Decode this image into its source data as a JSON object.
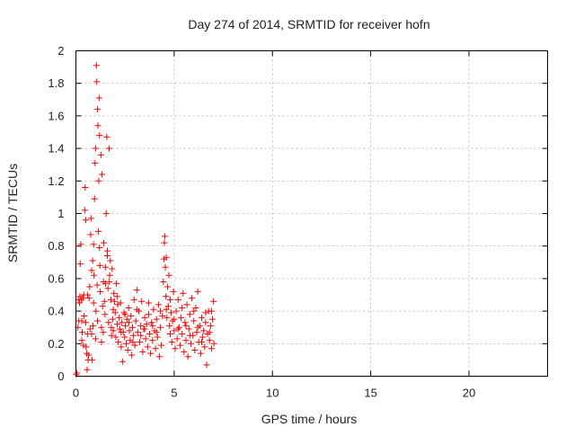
{
  "chart_data": {
    "type": "scatter",
    "title": "Day 274 of 2014, SRMTID for receiver hofn",
    "xlabel": "GPS time / hours",
    "ylabel": "SRMTID / TECUs",
    "xlim": [
      0,
      24
    ],
    "ylim": [
      0,
      2
    ],
    "x_ticks": [
      0,
      5,
      10,
      15,
      20
    ],
    "x_tick_labels": [
      "0",
      "5",
      "10",
      "15",
      "20"
    ],
    "y_ticks": [
      0,
      0.2,
      0.4,
      0.6,
      0.8,
      1,
      1.2,
      1.4,
      1.6,
      1.8,
      2
    ],
    "y_tick_labels": [
      "0",
      "0.2",
      "0.4",
      "0.6",
      "0.8",
      "1",
      "1.2",
      "1.4",
      "1.6",
      "1.8",
      "2"
    ],
    "grid": true,
    "marker": "+",
    "color": "#ff0000",
    "series": [
      {
        "name": "hofn",
        "points": [
          [
            0.02,
            0.01
          ],
          [
            0.05,
            0.02
          ],
          [
            0.1,
            0.3
          ],
          [
            0.12,
            0.47
          ],
          [
            0.15,
            0.34
          ],
          [
            0.18,
            0.45
          ],
          [
            0.2,
            0.49
          ],
          [
            0.22,
            0.69
          ],
          [
            0.25,
            0.81
          ],
          [
            0.28,
            0.47
          ],
          [
            0.3,
            0.22
          ],
          [
            0.32,
            0.27
          ],
          [
            0.35,
            0.48
          ],
          [
            0.38,
            0.19
          ],
          [
            0.4,
            0.5
          ],
          [
            0.42,
            0.37
          ],
          [
            0.45,
            1.02
          ],
          [
            0.47,
            1.16
          ],
          [
            0.5,
            0.96
          ],
          [
            0.52,
            0.18
          ],
          [
            0.55,
            0.14
          ],
          [
            0.57,
            0.04
          ],
          [
            0.6,
            0.26
          ],
          [
            0.62,
            0.1
          ],
          [
            0.65,
            0.13
          ],
          [
            0.67,
            0.48
          ],
          [
            0.7,
            0.55
          ],
          [
            0.72,
            0.29
          ],
          [
            0.75,
            0.87
          ],
          [
            0.77,
            0.97
          ],
          [
            0.8,
            0.65
          ],
          [
            0.82,
            0.1
          ],
          [
            0.85,
            0.71
          ],
          [
            0.87,
            0.31
          ],
          [
            0.9,
            0.81
          ],
          [
            0.92,
            0.62
          ],
          [
            0.95,
            1.09
          ],
          [
            0.97,
            1.31
          ],
          [
            1.0,
            1.4
          ],
          [
            1.02,
            0.4
          ],
          [
            1.04,
            1.91
          ],
          [
            1.06,
            1.81
          ],
          [
            1.08,
            0.56
          ],
          [
            1.1,
            1.64
          ],
          [
            1.12,
            1.54
          ],
          [
            1.14,
            0.89
          ],
          [
            1.16,
            1.2
          ],
          [
            1.18,
            1.71
          ],
          [
            1.2,
            1.48
          ],
          [
            1.22,
            0.68
          ],
          [
            1.24,
            0.52
          ],
          [
            1.27,
            1.36
          ],
          [
            1.3,
            0.3
          ],
          [
            1.33,
            1.24
          ],
          [
            1.36,
            0.43
          ],
          [
            1.39,
            0.27
          ],
          [
            1.42,
            0.82
          ],
          [
            1.45,
            0.46
          ],
          [
            1.48,
            0.38
          ],
          [
            1.51,
            0.57
          ],
          [
            1.54,
            1.0
          ],
          [
            1.57,
            1.47
          ],
          [
            1.6,
            0.77
          ],
          [
            1.63,
            0.54
          ],
          [
            1.66,
            0.33
          ],
          [
            1.69,
            1.4
          ],
          [
            1.72,
            0.62
          ],
          [
            1.75,
            0.71
          ],
          [
            1.78,
            0.47
          ],
          [
            1.81,
            0.25
          ],
          [
            1.84,
            0.66
          ],
          [
            1.87,
            0.35
          ],
          [
            1.9,
            0.28
          ],
          [
            1.93,
            0.51
          ],
          [
            1.96,
            0.46
          ],
          [
            2.0,
            0.39
          ],
          [
            2.03,
            0.24
          ],
          [
            2.06,
            0.57
          ],
          [
            2.1,
            0.32
          ],
          [
            2.13,
            0.44
          ],
          [
            2.16,
            0.21
          ],
          [
            2.2,
            0.36
          ],
          [
            2.23,
            0.29
          ],
          [
            2.27,
            0.45
          ],
          [
            2.3,
            0.18
          ],
          [
            2.34,
            0.33
          ],
          [
            2.37,
            0.09
          ],
          [
            2.41,
            0.27
          ],
          [
            2.45,
            0.39
          ],
          [
            2.48,
            0.24
          ],
          [
            2.52,
            0.31
          ],
          [
            2.56,
            0.2
          ],
          [
            2.6,
            0.35
          ],
          [
            2.64,
            0.16
          ],
          [
            2.68,
            0.42
          ],
          [
            2.72,
            0.28
          ],
          [
            2.76,
            0.22
          ],
          [
            2.8,
            0.37
          ],
          [
            2.84,
            0.13
          ],
          [
            2.88,
            0.3
          ],
          [
            2.92,
            0.25
          ],
          [
            2.96,
            0.47
          ],
          [
            3.0,
            0.19
          ],
          [
            3.05,
            0.34
          ],
          [
            3.1,
            0.53
          ],
          [
            3.15,
            0.27
          ],
          [
            3.2,
            0.4
          ],
          [
            3.25,
            0.21
          ],
          [
            3.3,
            0.31
          ],
          [
            3.35,
            0.46
          ],
          [
            3.4,
            0.15
          ],
          [
            3.45,
            0.29
          ],
          [
            3.5,
            0.36
          ],
          [
            3.55,
            0.23
          ],
          [
            3.6,
            0.32
          ],
          [
            3.65,
            0.18
          ],
          [
            3.7,
            0.38
          ],
          [
            3.75,
            0.26
          ],
          [
            3.8,
            0.14
          ],
          [
            3.85,
            0.33
          ],
          [
            3.9,
            0.22
          ],
          [
            3.95,
            0.41
          ],
          [
            4.0,
            0.28
          ],
          [
            4.05,
            0.17
          ],
          [
            4.1,
            0.35
          ],
          [
            4.15,
            0.24
          ],
          [
            4.2,
            0.44
          ],
          [
            4.25,
            0.12
          ],
          [
            4.3,
            0.3
          ],
          [
            4.35,
            0.19
          ],
          [
            4.4,
            0.37
          ],
          [
            4.45,
            0.58
          ],
          [
            4.48,
            0.72
          ],
          [
            4.5,
            0.82
          ],
          [
            4.52,
            0.86
          ],
          [
            4.55,
            0.67
          ],
          [
            4.58,
            0.49
          ],
          [
            4.6,
            0.41
          ],
          [
            4.63,
            0.36
          ],
          [
            4.66,
            0.55
          ],
          [
            4.7,
            0.43
          ],
          [
            4.73,
            0.62
          ],
          [
            4.76,
            0.31
          ],
          [
            4.8,
            0.26
          ],
          [
            4.84,
            0.39
          ],
          [
            4.88,
            0.21
          ],
          [
            4.92,
            0.34
          ],
          [
            4.96,
            0.52
          ],
          [
            5.0,
            0.28
          ],
          [
            5.05,
            0.17
          ],
          [
            5.1,
            0.4
          ],
          [
            5.15,
            0.23
          ],
          [
            5.2,
            0.47
          ],
          [
            5.25,
            0.3
          ],
          [
            5.3,
            0.19
          ],
          [
            5.35,
            0.36
          ],
          [
            5.4,
            0.26
          ],
          [
            5.45,
            0.51
          ],
          [
            5.5,
            0.15
          ],
          [
            5.55,
            0.33
          ],
          [
            5.6,
            0.22
          ],
          [
            5.65,
            0.44
          ],
          [
            5.7,
            0.12
          ],
          [
            5.75,
            0.29
          ],
          [
            5.8,
            0.38
          ],
          [
            5.85,
            0.2
          ],
          [
            5.9,
            0.48
          ],
          [
            5.95,
            0.25
          ],
          [
            6.0,
            0.34
          ],
          [
            6.05,
            0.16
          ],
          [
            6.1,
            0.42
          ],
          [
            6.15,
            0.27
          ],
          [
            6.2,
            0.52
          ],
          [
            6.25,
            0.21
          ],
          [
            6.3,
            0.31
          ],
          [
            6.35,
            0.14
          ],
          [
            6.4,
            0.36
          ],
          [
            6.45,
            0.24
          ],
          [
            6.5,
            0.28
          ],
          [
            6.55,
            0.18
          ],
          [
            6.6,
            0.33
          ],
          [
            6.65,
            0.07
          ],
          [
            6.7,
            0.26
          ],
          [
            6.75,
            0.4
          ],
          [
            6.8,
            0.22
          ],
          [
            6.85,
            0.31
          ],
          [
            6.9,
            0.17
          ],
          [
            6.95,
            0.35
          ],
          [
            7.0,
            0.46
          ],
          [
            7.02,
            0.2
          ],
          [
            0.3,
            0.34
          ],
          [
            0.6,
            0.5
          ],
          [
            0.9,
            0.45
          ],
          [
            1.1,
            0.34
          ],
          [
            1.3,
            0.21
          ],
          [
            1.5,
            0.67
          ],
          [
            1.7,
            0.58
          ],
          [
            1.9,
            0.41
          ],
          [
            2.1,
            0.49
          ],
          [
            2.3,
            0.27
          ],
          [
            2.5,
            0.38
          ],
          [
            2.7,
            0.33
          ],
          [
            2.9,
            0.21
          ],
          [
            3.1,
            0.41
          ],
          [
            3.3,
            0.25
          ],
          [
            3.5,
            0.29
          ],
          [
            3.7,
            0.45
          ],
          [
            3.9,
            0.31
          ],
          [
            4.1,
            0.27
          ],
          [
            4.3,
            0.4
          ],
          [
            4.6,
            0.73
          ],
          [
            4.8,
            0.47
          ],
          [
            5.0,
            0.35
          ],
          [
            5.2,
            0.29
          ],
          [
            5.4,
            0.42
          ],
          [
            5.6,
            0.31
          ],
          [
            5.8,
            0.25
          ],
          [
            6.0,
            0.4
          ],
          [
            6.2,
            0.3
          ],
          [
            6.4,
            0.21
          ],
          [
            6.6,
            0.39
          ],
          [
            6.8,
            0.27
          ],
          [
            6.9,
            0.4
          ],
          [
            0.5,
            0.33
          ],
          [
            0.8,
            0.26
          ],
          [
            1.0,
            0.23
          ],
          [
            1.2,
            0.79
          ],
          [
            1.4,
            0.58
          ],
          [
            1.6,
            0.74
          ],
          [
            1.8,
            0.3
          ]
        ]
      }
    ]
  }
}
